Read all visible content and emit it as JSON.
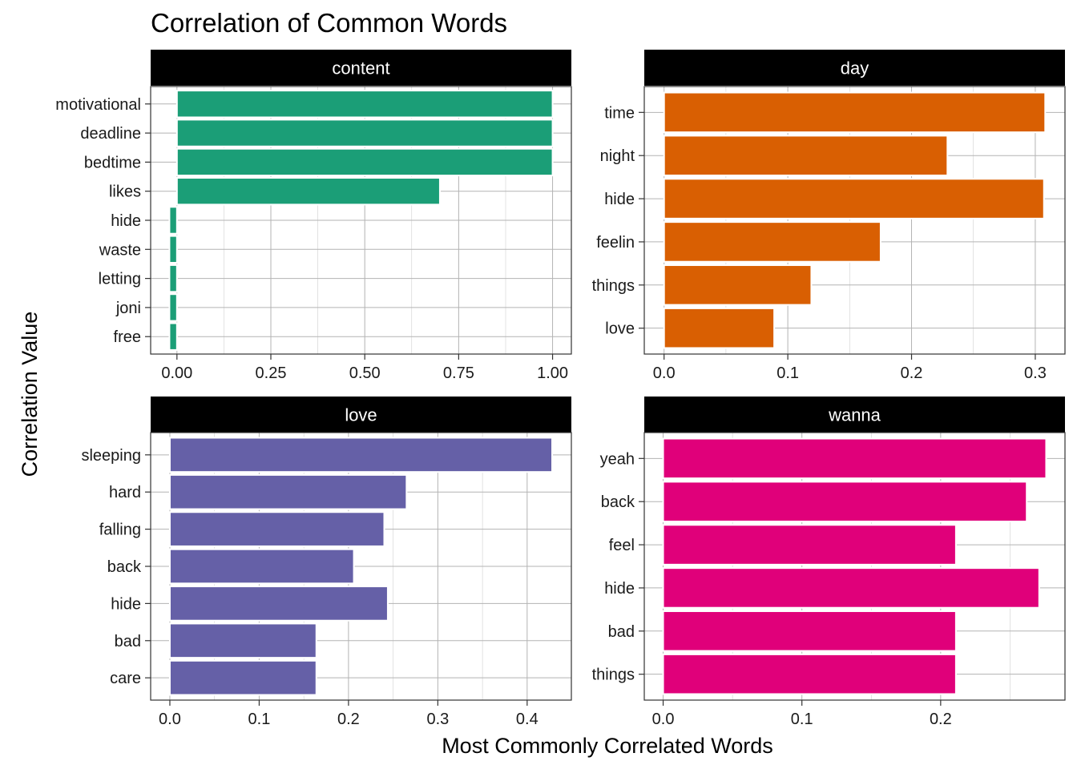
{
  "title": "Correlation of Common Words",
  "xlabel": "Most Commonly Correlated Words",
  "ylabel": "Correlation Value",
  "chart_data": [
    {
      "type": "bar",
      "orientation": "horizontal",
      "facet": "content",
      "color": "#1B9E77",
      "categories": [
        "motivational",
        "deadline",
        "bedtime",
        "likes",
        "hide",
        "waste",
        "letting",
        "joni",
        "free"
      ],
      "values": [
        1.0,
        1.0,
        1.0,
        0.7,
        -0.02,
        -0.02,
        -0.02,
        -0.02,
        -0.02
      ],
      "xlim": [
        -0.07,
        1.05
      ],
      "ticks": [
        0,
        0.25,
        0.5,
        0.75,
        1.0
      ],
      "tick_labels": [
        "0.00",
        "0.25",
        "0.50",
        "0.75",
        "1.00"
      ],
      "grid": true
    },
    {
      "type": "bar",
      "orientation": "horizontal",
      "facet": "day",
      "color": "#D95F02",
      "categories": [
        "time",
        "night",
        "hide",
        "feelin",
        "things",
        "love"
      ],
      "values": [
        0.308,
        0.229,
        0.307,
        0.175,
        0.119,
        0.089
      ],
      "xlim": [
        -0.016,
        0.324
      ],
      "ticks": [
        0,
        0.1,
        0.2,
        0.3
      ],
      "tick_labels": [
        "0.0",
        "0.1",
        "0.2",
        "0.3"
      ],
      "grid": true
    },
    {
      "type": "bar",
      "orientation": "horizontal",
      "facet": "love",
      "color": "#6560A7",
      "categories": [
        "sleeping",
        "hard",
        "falling",
        "back",
        "hide",
        "bad",
        "care"
      ],
      "values": [
        0.428,
        0.265,
        0.24,
        0.206,
        0.244,
        0.164,
        0.164
      ],
      "xlim": [
        -0.0215,
        0.4495
      ],
      "ticks": [
        0,
        0.1,
        0.2,
        0.3,
        0.4
      ],
      "tick_labels": [
        "0.0",
        "0.1",
        "0.2",
        "0.3",
        "0.4"
      ],
      "grid": true
    },
    {
      "type": "bar",
      "orientation": "horizontal",
      "facet": "wanna",
      "color": "#E0007A",
      "categories": [
        "yeah",
        "back",
        "feel",
        "hide",
        "bad",
        "things"
      ],
      "values": [
        0.276,
        0.262,
        0.211,
        0.271,
        0.211,
        0.211
      ],
      "xlim": [
        -0.0136,
        0.2896
      ],
      "ticks": [
        0,
        0.1,
        0.2
      ],
      "tick_labels": [
        "0.0",
        "0.1",
        "0.2"
      ],
      "grid": true
    }
  ]
}
